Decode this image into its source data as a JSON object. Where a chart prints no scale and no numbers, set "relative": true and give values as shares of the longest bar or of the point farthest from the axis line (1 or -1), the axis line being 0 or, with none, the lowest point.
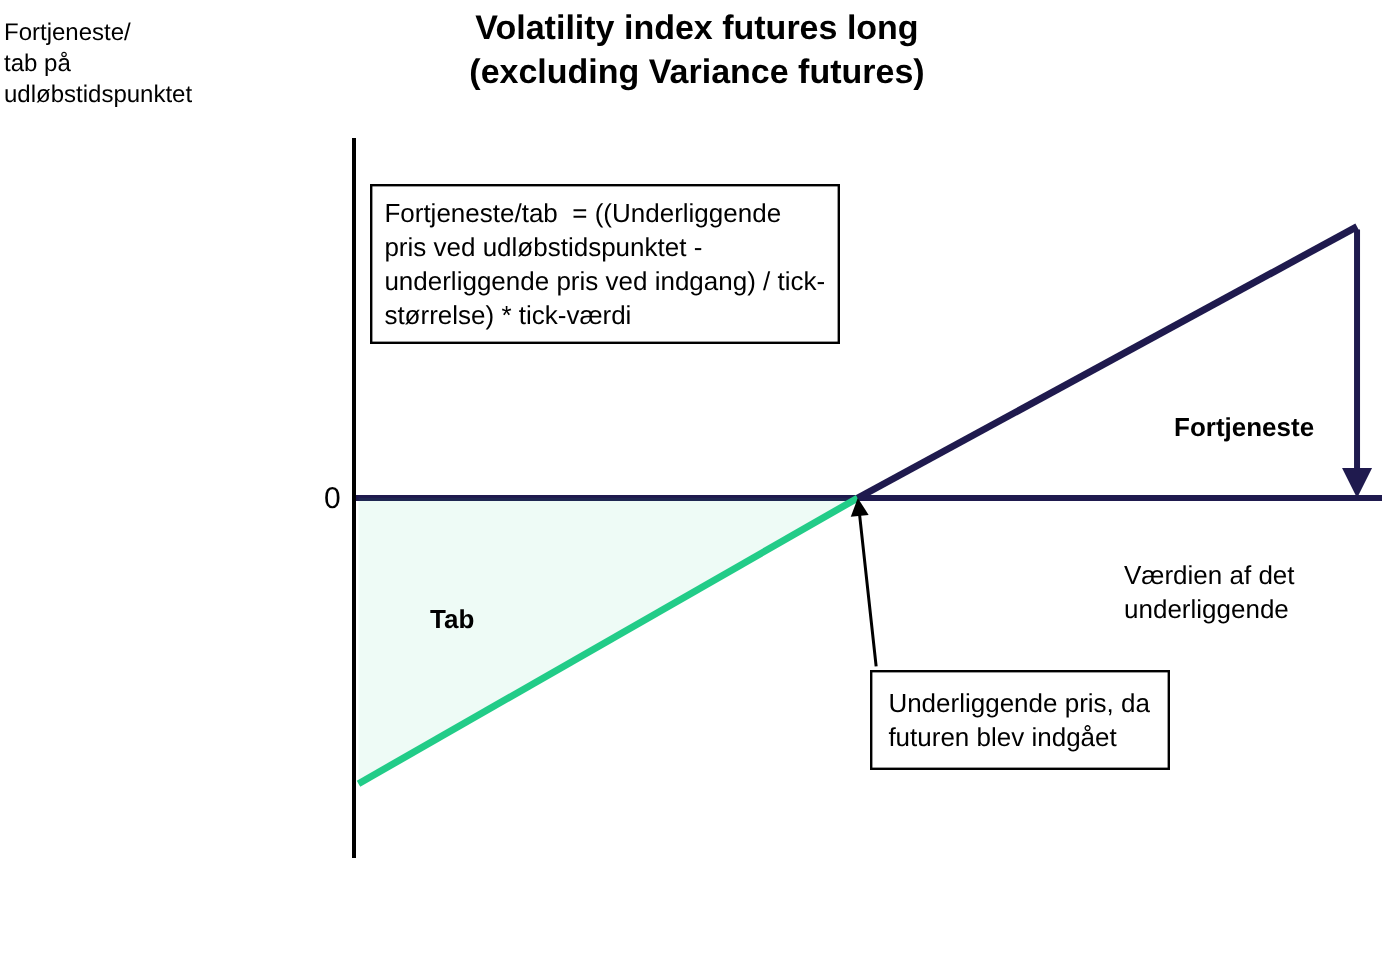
{
  "chart_data": {
    "type": "line",
    "relative": true,
    "title": "Volatility index futures long\n(excluding Variance futures)",
    "xlabel": "Værdien af det\nunderliggende",
    "categories": [
      null,
      null,
      null,
      null,
      null,
      null,
      null,
      null,
      null
    ],
    "series": [
      {
        "type": "area",
        "color": "#22cc88",
        "values": [
          -1,
          null,
          null,
          null,
          0,
          null,
          null,
          null,
          null
        ]
      },
      {
        "color": "#1f1a4e",
        "values": [
          null,
          null,
          null,
          null,
          0,
          null,
          null,
          null,
          0.95
        ]
      }
    ],
    "annotations": [
      "Fortjeneste/\ntab på\nudløbstidspunktet",
      "0",
      "Fortjeneste/tab  = ((Underliggende\npris ved udløbstidspunktet -\nunderliggende pris ved indgang) / tick-\nstørrelse) * tick-værdi",
      "Tab",
      "Fortjeneste",
      "Underliggende pris, da\nfuturen blev indgået"
    ]
  }
}
